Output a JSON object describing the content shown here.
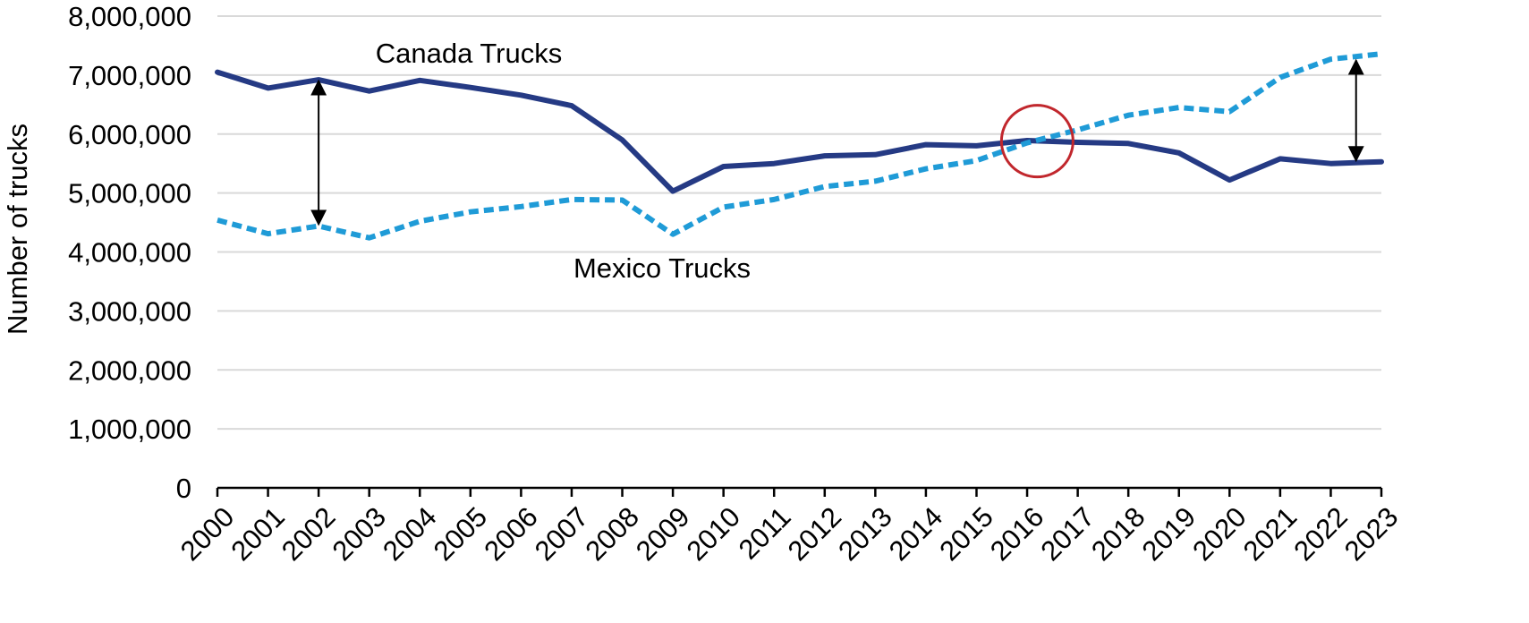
{
  "chart_data": {
    "type": "line",
    "title": "",
    "xlabel": "",
    "ylabel": "Number of trucks",
    "ylim": [
      0,
      8000000
    ],
    "yticks": [
      "0",
      "1,000,000",
      "2,000,000",
      "3,000,000",
      "4,000,000",
      "5,000,000",
      "6,000,000",
      "7,000,000",
      "8,000,000"
    ],
    "ytick_values": [
      0,
      1000000,
      2000000,
      3000000,
      4000000,
      5000000,
      6000000,
      7000000,
      8000000
    ],
    "grid": true,
    "categories": [
      "2000",
      "2001",
      "2002",
      "2003",
      "2004",
      "2005",
      "2006",
      "2007",
      "2008",
      "2009",
      "2010",
      "2011",
      "2012",
      "2013",
      "2014",
      "2015",
      "2016",
      "2017",
      "2018",
      "2019",
      "2020",
      "2021",
      "2022",
      "2023"
    ],
    "series": [
      {
        "name": "Canada Trucks",
        "color": "#253a84",
        "style": "solid",
        "values": [
          7050000,
          6780000,
          6920000,
          6730000,
          6910000,
          6790000,
          6660000,
          6480000,
          5900000,
          5030000,
          5450000,
          5500000,
          5630000,
          5650000,
          5820000,
          5800000,
          5890000,
          5860000,
          5840000,
          5680000,
          5220000,
          5580000,
          5500000,
          5530000
        ]
      },
      {
        "name": "Mexico Trucks",
        "color": "#1f9bd7",
        "style": "dashed",
        "values": [
          4540000,
          4310000,
          4440000,
          4240000,
          4520000,
          4680000,
          4770000,
          4890000,
          4880000,
          4300000,
          4760000,
          4890000,
          5110000,
          5200000,
          5410000,
          5550000,
          5850000,
          6070000,
          6320000,
          6450000,
          6380000,
          6960000,
          7270000,
          7360000
        ]
      }
    ],
    "annotations": [
      {
        "type": "double-arrow",
        "x": "2002",
        "from": 6900000,
        "to": 4470000
      },
      {
        "type": "double-arrow",
        "x": "2022.5",
        "from": 7250000,
        "to": 5550000
      },
      {
        "type": "circle",
        "x": "2016.2",
        "y": 5880000,
        "color": "#c1272d"
      }
    ]
  }
}
